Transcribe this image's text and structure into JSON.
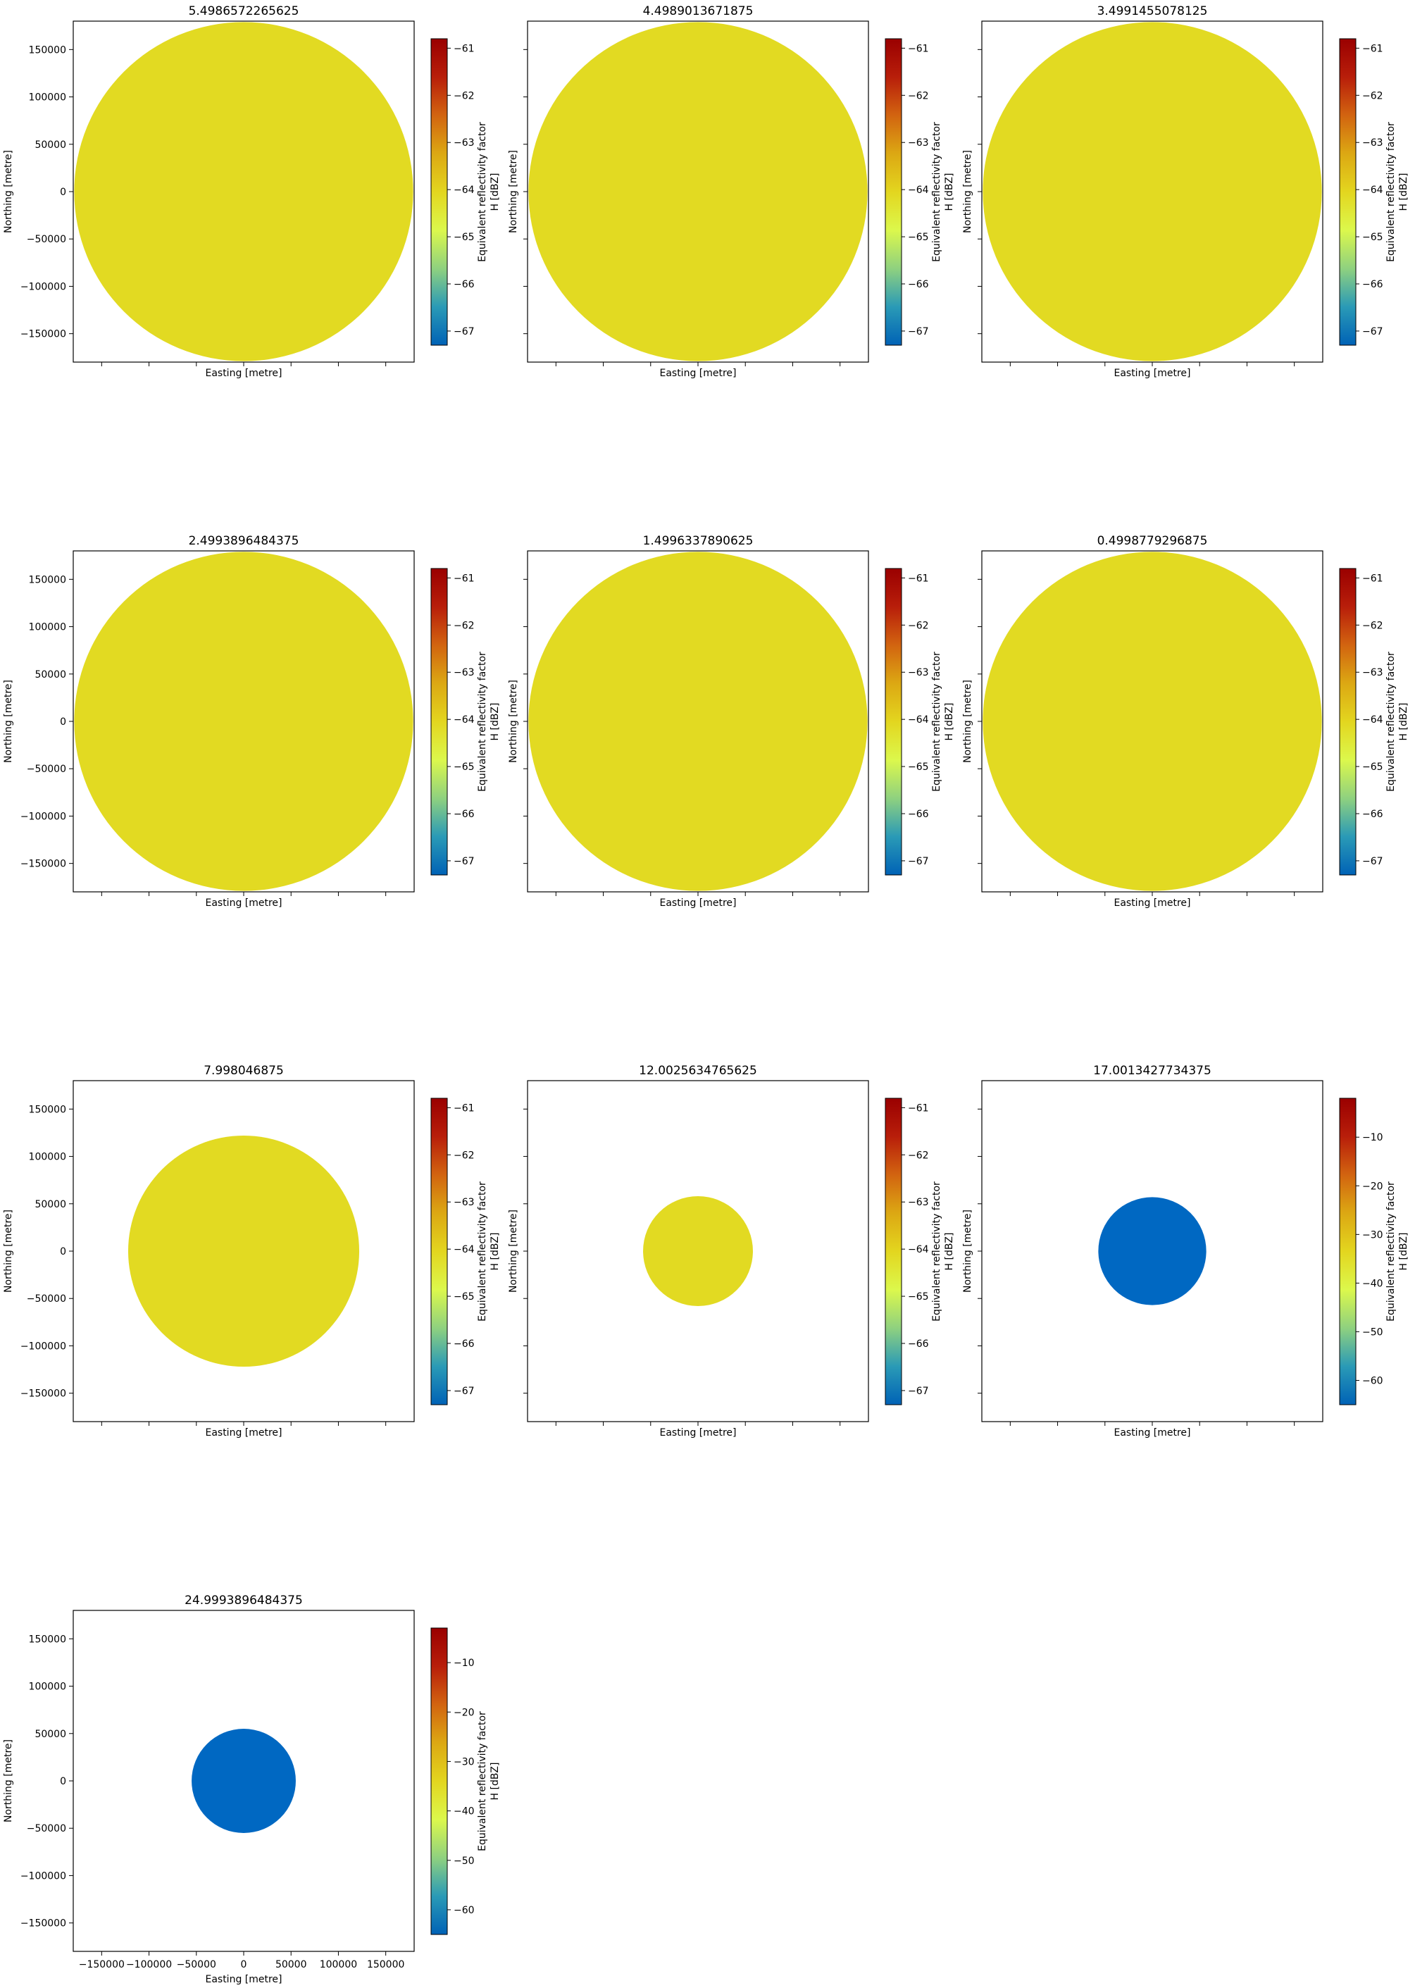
{
  "figure": {
    "xlabel": "Easting [metre]",
    "ylabel": "Northing [metre]",
    "colorbar_label_line1": "Equivalent reflectivity factor",
    "colorbar_label_line2": "H [dBZ]"
  },
  "chart_data": [
    {
      "type": "heatmap",
      "title": "5.4986572265625",
      "xlabel": "Easting [metre]",
      "ylabel": "Northing [metre]",
      "xlim": [
        -180000,
        180000
      ],
      "ylim": [
        -180000,
        180000
      ],
      "x_ticks": [
        -150000,
        -100000,
        -50000,
        0,
        50000,
        100000,
        150000
      ],
      "x_tick_labels_shown": false,
      "y_ticks": [
        -150000,
        -100000,
        -50000,
        0,
        50000,
        100000,
        150000
      ],
      "y_tick_labels_shown": true,
      "coverage_radius_m": 179000,
      "value_dbz": -64.2,
      "fill_color": "#e2da22",
      "colorbar": {
        "label": "Equivalent reflectivity factor\nH [dBZ]",
        "range": [
          -67.3,
          -60.8
        ],
        "ticks": [
          -67,
          -66,
          -65,
          -64,
          -63,
          -62,
          -61
        ]
      }
    },
    {
      "type": "heatmap",
      "title": "4.4989013671875",
      "xlabel": "Easting [metre]",
      "ylabel": "Northing [metre]",
      "xlim": [
        -180000,
        180000
      ],
      "ylim": [
        -180000,
        180000
      ],
      "x_ticks": [
        -150000,
        -100000,
        -50000,
        0,
        50000,
        100000,
        150000
      ],
      "x_tick_labels_shown": false,
      "y_ticks": [
        -150000,
        -100000,
        -50000,
        0,
        50000,
        100000,
        150000
      ],
      "y_tick_labels_shown": false,
      "coverage_radius_m": 179000,
      "value_dbz": -64.2,
      "fill_color": "#e2da22",
      "colorbar": {
        "label": "Equivalent reflectivity factor\nH [dBZ]",
        "range": [
          -67.3,
          -60.8
        ],
        "ticks": [
          -67,
          -66,
          -65,
          -64,
          -63,
          -62,
          -61
        ]
      }
    },
    {
      "type": "heatmap",
      "title": "3.4991455078125",
      "xlabel": "Easting [metre]",
      "ylabel": "Northing [metre]",
      "xlim": [
        -180000,
        180000
      ],
      "ylim": [
        -180000,
        180000
      ],
      "x_ticks": [
        -150000,
        -100000,
        -50000,
        0,
        50000,
        100000,
        150000
      ],
      "x_tick_labels_shown": false,
      "y_ticks": [
        -150000,
        -100000,
        -50000,
        0,
        50000,
        100000,
        150000
      ],
      "y_tick_labels_shown": false,
      "coverage_radius_m": 179000,
      "value_dbz": -64.2,
      "fill_color": "#e2da22",
      "colorbar": {
        "label": "Equivalent reflectivity factor\nH [dBZ]",
        "range": [
          -67.3,
          -60.8
        ],
        "ticks": [
          -67,
          -66,
          -65,
          -64,
          -63,
          -62,
          -61
        ]
      }
    },
    {
      "type": "heatmap",
      "title": "2.4993896484375",
      "xlabel": "Easting [metre]",
      "ylabel": "Northing [metre]",
      "xlim": [
        -180000,
        180000
      ],
      "ylim": [
        -180000,
        180000
      ],
      "x_ticks": [
        -150000,
        -100000,
        -50000,
        0,
        50000,
        100000,
        150000
      ],
      "x_tick_labels_shown": false,
      "y_ticks": [
        -150000,
        -100000,
        -50000,
        0,
        50000,
        100000,
        150000
      ],
      "y_tick_labels_shown": true,
      "coverage_radius_m": 179000,
      "value_dbz": -64.2,
      "fill_color": "#e2da22",
      "colorbar": {
        "label": "Equivalent reflectivity factor\nH [dBZ]",
        "range": [
          -67.3,
          -60.8
        ],
        "ticks": [
          -67,
          -66,
          -65,
          -64,
          -63,
          -62,
          -61
        ]
      }
    },
    {
      "type": "heatmap",
      "title": "1.4996337890625",
      "xlabel": "Easting [metre]",
      "ylabel": "Northing [metre]",
      "xlim": [
        -180000,
        180000
      ],
      "ylim": [
        -180000,
        180000
      ],
      "x_ticks": [
        -150000,
        -100000,
        -50000,
        0,
        50000,
        100000,
        150000
      ],
      "x_tick_labels_shown": false,
      "y_ticks": [
        -150000,
        -100000,
        -50000,
        0,
        50000,
        100000,
        150000
      ],
      "y_tick_labels_shown": false,
      "coverage_radius_m": 179000,
      "value_dbz": -64.2,
      "fill_color": "#e2da22",
      "colorbar": {
        "label": "Equivalent reflectivity factor\nH [dBZ]",
        "range": [
          -67.3,
          -60.8
        ],
        "ticks": [
          -67,
          -66,
          -65,
          -64,
          -63,
          -62,
          -61
        ]
      }
    },
    {
      "type": "heatmap",
      "title": "0.4998779296875",
      "xlabel": "Easting [metre]",
      "ylabel": "Northing [metre]",
      "xlim": [
        -180000,
        180000
      ],
      "ylim": [
        -180000,
        180000
      ],
      "x_ticks": [
        -150000,
        -100000,
        -50000,
        0,
        50000,
        100000,
        150000
      ],
      "x_tick_labels_shown": false,
      "y_ticks": [
        -150000,
        -100000,
        -50000,
        0,
        50000,
        100000,
        150000
      ],
      "y_tick_labels_shown": false,
      "coverage_radius_m": 179000,
      "value_dbz": -64.2,
      "fill_color": "#e2da22",
      "colorbar": {
        "label": "Equivalent reflectivity factor\nH [dBZ]",
        "range": [
          -67.3,
          -60.8
        ],
        "ticks": [
          -67,
          -66,
          -65,
          -64,
          -63,
          -62,
          -61
        ]
      }
    },
    {
      "type": "heatmap",
      "title": "7.998046875",
      "xlabel": "Easting [metre]",
      "ylabel": "Northing [metre]",
      "xlim": [
        -180000,
        180000
      ],
      "ylim": [
        -180000,
        180000
      ],
      "x_ticks": [
        -150000,
        -100000,
        -50000,
        0,
        50000,
        100000,
        150000
      ],
      "x_tick_labels_shown": false,
      "y_ticks": [
        -150000,
        -100000,
        -50000,
        0,
        50000,
        100000,
        150000
      ],
      "y_tick_labels_shown": true,
      "coverage_radius_m": 122000,
      "value_dbz": -64.2,
      "fill_color": "#e2da22",
      "colorbar": {
        "label": "Equivalent reflectivity factor\nH [dBZ]",
        "range": [
          -67.3,
          -60.8
        ],
        "ticks": [
          -67,
          -66,
          -65,
          -64,
          -63,
          -62,
          -61
        ]
      }
    },
    {
      "type": "heatmap",
      "title": "12.0025634765625",
      "xlabel": "Easting [metre]",
      "ylabel": "Northing [metre]",
      "xlim": [
        -180000,
        180000
      ],
      "ylim": [
        -180000,
        180000
      ],
      "x_ticks": [
        -150000,
        -100000,
        -50000,
        0,
        50000,
        100000,
        150000
      ],
      "x_tick_labels_shown": false,
      "y_ticks": [
        -150000,
        -100000,
        -50000,
        0,
        50000,
        100000,
        150000
      ],
      "y_tick_labels_shown": false,
      "coverage_radius_m": 58000,
      "value_dbz": -64.2,
      "fill_color": "#e2da22",
      "colorbar": {
        "label": "Equivalent reflectivity factor\nH [dBZ]",
        "range": [
          -67.3,
          -60.8
        ],
        "ticks": [
          -67,
          -66,
          -65,
          -64,
          -63,
          -62,
          -61
        ]
      }
    },
    {
      "type": "heatmap",
      "title": "17.0013427734375",
      "xlabel": "Easting [metre]",
      "ylabel": "Northing [metre]",
      "xlim": [
        -180000,
        180000
      ],
      "ylim": [
        -180000,
        180000
      ],
      "x_ticks": [
        -150000,
        -100000,
        -50000,
        0,
        50000,
        100000,
        150000
      ],
      "x_tick_labels_shown": false,
      "y_ticks": [
        -150000,
        -100000,
        -50000,
        0,
        50000,
        100000,
        150000
      ],
      "y_tick_labels_shown": false,
      "coverage_radius_m": 57000,
      "value_dbz": -63.5,
      "fill_color": "#0068c2",
      "colorbar": {
        "label": "Equivalent reflectivity factor\nH [dBZ]",
        "range": [
          -65,
          -2
        ],
        "ticks": [
          -60,
          -50,
          -40,
          -30,
          -20,
          -10
        ]
      }
    },
    {
      "type": "heatmap",
      "title": "24.9993896484375",
      "xlabel": "Easting [metre]",
      "ylabel": "Northing [metre]",
      "xlim": [
        -180000,
        180000
      ],
      "ylim": [
        -180000,
        180000
      ],
      "x_ticks": [
        -150000,
        -100000,
        -50000,
        0,
        50000,
        100000,
        150000
      ],
      "x_tick_labels_shown": true,
      "y_ticks": [
        -150000,
        -100000,
        -50000,
        0,
        50000,
        100000,
        150000
      ],
      "y_tick_labels_shown": true,
      "coverage_radius_m": 55000,
      "value_dbz": -63.5,
      "fill_color": "#0068c2",
      "colorbar": {
        "label": "Equivalent reflectivity factor\nH [dBZ]",
        "range": [
          -65,
          -3
        ],
        "ticks": [
          -60,
          -50,
          -40,
          -30,
          -20,
          -10
        ]
      }
    }
  ],
  "colormap_stops": [
    "#0062b6",
    "#2a9ab6",
    "#8fd17f",
    "#dcf84c",
    "#e3d61f",
    "#dca813",
    "#d26410",
    "#b81e0a",
    "#9a0000"
  ]
}
